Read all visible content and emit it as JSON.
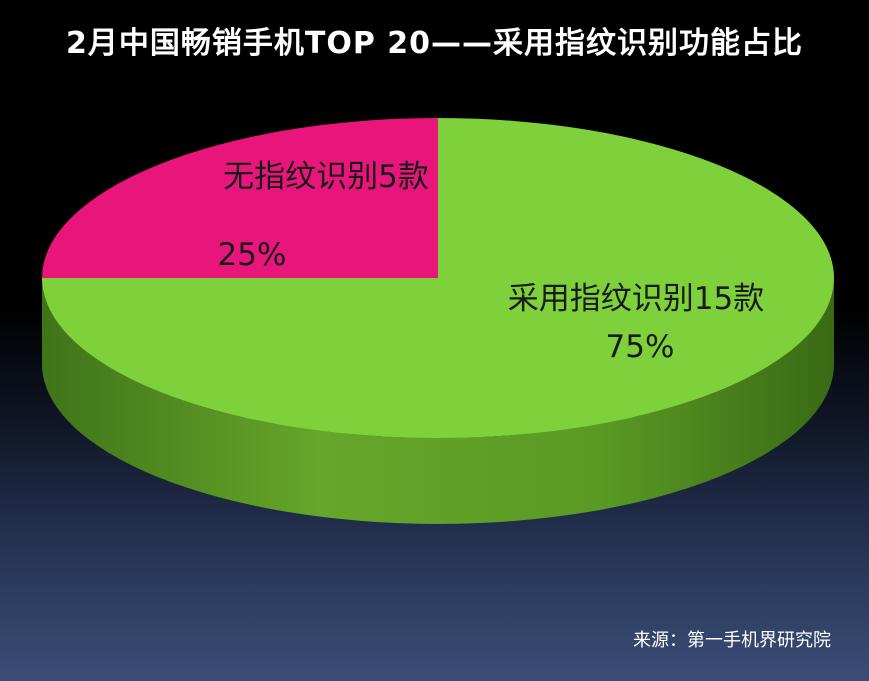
{
  "chart_data": {
    "type": "pie",
    "title": "2月中国畅销手机TOP 20——采用指纹识别功能占比",
    "slices": [
      {
        "label": "采用指纹识别15款",
        "value": 15,
        "percent_label": "75%",
        "color": "#7ed13a"
      },
      {
        "label": "无指纹识别5款",
        "value": 5,
        "percent_label": "25%",
        "color": "#e8157a"
      }
    ],
    "style": "3d-pie"
  },
  "source": "来源：第一手机界研究院",
  "colors": {
    "background_top": "#000000",
    "background_bottom": "#3a4d76",
    "side_green": "#55951f",
    "title": "#ffffff"
  }
}
